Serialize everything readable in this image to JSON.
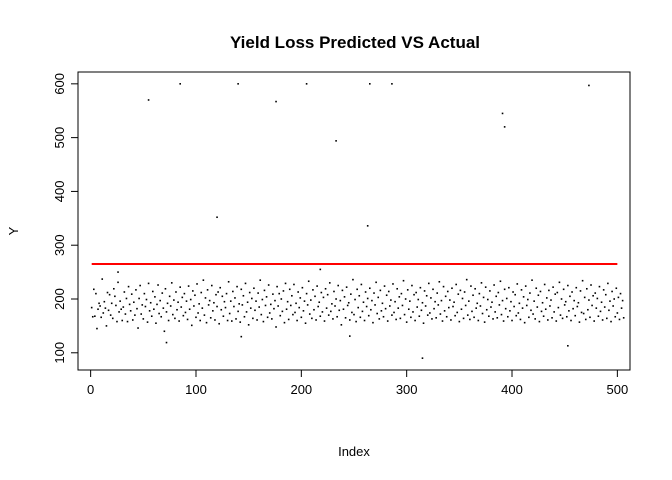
{
  "chart_data": {
    "type": "scatter",
    "title": "Yield Loss Predicted VS Actual",
    "xlabel": "Index",
    "ylabel": "Y",
    "xlim": [
      -12,
      512
    ],
    "ylim": [
      68,
      622
    ],
    "xticks": [
      0,
      100,
      200,
      300,
      400,
      500
    ],
    "yticks": [
      100,
      200,
      300,
      400,
      500,
      600
    ],
    "grid": false,
    "legend": "none",
    "colors": {
      "points": "#000000",
      "predicted_line": "#ff0000",
      "axes": "#000000"
    },
    "predicted_line": {
      "x": [
        1,
        500
      ],
      "y": [
        265,
        265
      ]
    },
    "outliers": [
      {
        "x": 55,
        "y": 570
      },
      {
        "x": 85,
        "y": 600
      },
      {
        "x": 120,
        "y": 352
      },
      {
        "x": 140,
        "y": 600
      },
      {
        "x": 176,
        "y": 567
      },
      {
        "x": 205,
        "y": 600
      },
      {
        "x": 233,
        "y": 494
      },
      {
        "x": 263,
        "y": 336
      },
      {
        "x": 265,
        "y": 600
      },
      {
        "x": 286,
        "y": 600
      },
      {
        "x": 391,
        "y": 545
      },
      {
        "x": 393,
        "y": 520
      },
      {
        "x": 473,
        "y": 597
      },
      {
        "x": 315,
        "y": 90
      },
      {
        "x": 72,
        "y": 119
      },
      {
        "x": 453,
        "y": 113
      },
      {
        "x": 143,
        "y": 130
      },
      {
        "x": 246,
        "y": 131
      },
      {
        "x": 218,
        "y": 255
      },
      {
        "x": 26,
        "y": 250
      }
    ],
    "y_points": [
      184,
      167,
      218,
      168,
      210,
      145,
      181,
      192,
      187,
      166,
      237,
      174,
      195,
      183,
      150,
      212,
      179,
      208,
      170,
      192,
      164,
      219,
      205,
      188,
      158,
      231,
      176,
      196,
      181,
      160,
      185,
      213,
      172,
      201,
      158,
      223,
      190,
      178,
      209,
      161,
      194,
      170,
      217,
      182,
      146,
      201,
      225,
      172,
      189,
      163,
      210,
      186,
      199,
      157,
      229,
      178,
      193,
      168,
      214,
      181,
      204,
      155,
      190,
      226,
      173,
      197,
      167,
      211,
      183,
      140,
      219,
      176,
      192,
      160,
      205,
      187,
      230,
      171,
      198,
      164,
      213,
      180,
      194,
      159,
      222,
      185,
      203,
      169,
      210,
      175,
      196,
      162,
      224,
      181,
      199,
      151,
      215,
      187,
      207,
      166,
      228,
      174,
      191,
      160,
      212,
      183,
      235,
      170,
      202,
      156,
      217,
      189,
      197,
      165,
      225,
      178,
      193,
      161,
      208,
      186,
      213,
      154,
      221,
      180,
      205,
      168,
      195,
      184,
      210,
      160,
      232,
      173,
      196,
      159,
      214,
      186,
      202,
      163,
      223,
      177,
      191,
      157,
      218,
      189,
      206,
      167,
      229,
      176,
      194,
      152,
      212,
      183,
      201,
      164,
      220,
      179,
      196,
      161,
      211,
      185,
      235,
      171,
      199,
      158,
      216,
      188,
      204,
      166,
      226,
      174,
      190,
      163,
      209,
      182,
      197,
      148,
      223,
      187,
      210,
      169,
      200,
      177,
      215,
      156,
      229,
      181,
      195,
      162,
      218,
      188,
      206,
      171,
      227,
      175,
      192,
      160,
      213,
      184,
      202,
      166,
      221,
      178,
      196,
      155,
      210,
      189,
      233,
      172,
      198,
      164,
      217,
      180,
      205,
      161,
      224,
      186,
      194,
      168,
      212,
      176,
      203,
      159,
      219,
      183,
      208,
      170,
      230,
      177,
      191,
      163,
      214,
      187,
      200,
      167,
      225,
      179,
      197,
      152,
      216,
      181,
      204,
      165,
      222,
      188,
      193,
      161,
      209,
      175,
      236,
      171,
      199,
      158,
      218,
      184,
      206,
      166,
      227,
      177,
      194,
      160,
      213,
      186,
      201,
      169,
      220,
      180,
      197,
      156,
      211,
      189,
      231,
      173,
      203,
      163,
      216,
      178,
      192,
      167,
      224,
      182,
      207,
      159,
      214,
      187,
      198,
      170,
      228,
      175,
      195,
      162,
      219,
      183,
      204,
      164,
      210,
      188,
      234,
      171,
      200,
      157,
      217,
      181,
      196,
      166,
      225,
      176,
      208,
      160,
      212,
      185,
      199,
      168,
      221,
      179,
      193,
      155,
      215,
      187,
      206,
      170,
      229,
      174,
      202,
      163,
      218,
      182,
      195,
      165,
      211,
      189,
      232,
      172,
      197,
      159,
      223,
      178,
      205,
      167,
      214,
      184,
      198,
      161,
      220,
      186,
      194,
      169,
      227,
      175,
      209,
      158,
      216,
      181,
      201,
      164,
      213,
      188,
      236,
      170,
      196,
      162,
      224,
      177,
      207,
      166,
      219,
      183,
      192,
      160,
      210,
      187,
      230,
      173,
      203,
      157,
      222,
      180,
      199,
      168,
      215,
      185,
      194,
      163,
      226,
      176,
      205,
      165,
      212,
      189,
      233,
      171,
      197,
      159,
      218,
      182,
      201,
      167,
      221,
      178,
      195,
      160,
      213,
      186,
      208,
      169,
      228,
      174,
      192,
      162,
      217,
      183,
      204,
      156,
      224,
      188,
      199,
      166,
      211,
      179,
      235,
      172,
      196,
      163,
      220,
      185,
      207,
      158,
      214,
      177,
      193,
      168,
      227,
      181,
      202,
      161,
      216,
      187,
      198,
      165,
      222,
      176,
      209,
      159,
      212,
      184,
      231,
      170,
      200,
      164,
      218,
      189,
      195,
      167,
      225,
      178,
      205,
      160,
      213,
      182,
      197,
      169,
      221,
      186,
      193,
      157,
      215,
      175,
      234,
      173,
      203,
      162,
      219,
      180,
      198,
      166,
      226,
      188,
      206,
      159,
      211,
      183,
      201,
      168,
      223,
      177,
      194,
      161,
      217,
      185,
      208,
      164,
      229,
      179,
      196,
      158,
      214,
      187,
      200,
      167,
      220,
      174,
      203,
      162,
      210,
      183,
      197,
      165
    ]
  }
}
